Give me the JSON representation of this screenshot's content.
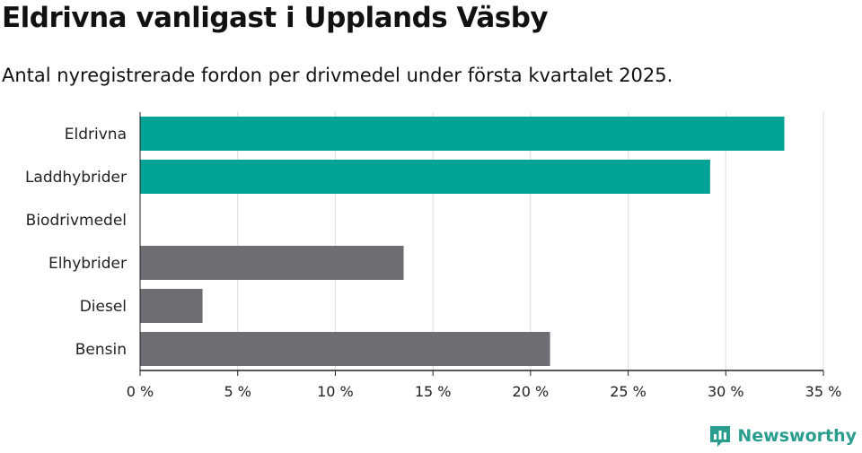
{
  "title": "Eldrivna vanligast i Upplands Väsby",
  "subtitle": "Antal nyregistrerade fordon per drivmedel under första kvartalet 2025.",
  "brand": {
    "name": "Newsworthy",
    "icon": "newsworthy-logo-icon"
  },
  "colors": {
    "highlight": "#00A398",
    "other": "#6E6D74",
    "grid": "#dddddd",
    "axis": "#222222"
  },
  "chart_data": {
    "type": "bar",
    "orientation": "horizontal",
    "categories": [
      "Eldrivna",
      "Laddhybrider",
      "Biodrivmedel",
      "Elhybrider",
      "Diesel",
      "Bensin"
    ],
    "values": [
      33.0,
      29.2,
      0,
      13.5,
      3.2,
      21.0
    ],
    "highlighted": [
      true,
      true,
      true,
      false,
      false,
      false
    ],
    "xlim": [
      0,
      35
    ],
    "ticks": [
      0,
      5,
      10,
      15,
      20,
      25,
      30,
      35
    ],
    "tick_labels": [
      "0 %",
      "5 %",
      "10 %",
      "15 %",
      "20 %",
      "25 %",
      "30 %",
      "35 %"
    ],
    "grid": true
  }
}
